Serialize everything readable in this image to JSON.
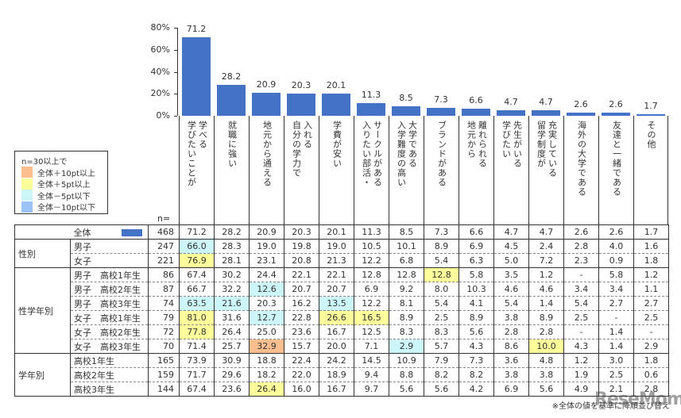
{
  "chart_data": {
    "type": "bar",
    "title": "",
    "ylabel": "",
    "xlabel": "",
    "ylim": [
      0,
      80
    ],
    "yticks": [
      "0%",
      "20%",
      "40%",
      "60%",
      "80%"
    ],
    "grid": false,
    "categories": [
      "学びたいことが学べる",
      "就職に強い",
      "地元から通える",
      "自分の学力で入れる",
      "学費が安い",
      "入りたい部活・サークルがある",
      "入学難度の高い大学である",
      "ブランドがある",
      "地元から離れられる",
      "学びたい先生がいる",
      "留学制度が充実している",
      "海外の大学である",
      "友達と一緒である",
      "その他"
    ],
    "values": [
      71.2,
      28.2,
      20.9,
      20.3,
      20.1,
      11.3,
      8.5,
      7.3,
      6.6,
      4.7,
      4.7,
      2.6,
      2.6,
      1.7
    ],
    "bar_color": "#4472c4",
    "legend": {
      "title": "n=30以上で",
      "items": [
        {
          "label": "全体＋10pt以上",
          "color": "#fbbf8f"
        },
        {
          "label": "全体＋5pt以上",
          "color": "#fefe9a"
        },
        {
          "label": "全体－5pt以下",
          "color": "#ccf6fa"
        },
        {
          "label": "全体－10pt以下",
          "color": "#9cc3f5"
        }
      ]
    },
    "table": {
      "n_label": "n=",
      "rows": [
        {
          "group": "",
          "label": "全体",
          "n": "468",
          "values": [
            "71.2",
            "28.2",
            "20.9",
            "20.3",
            "20.1",
            "11.3",
            "8.5",
            "7.3",
            "6.6",
            "4.7",
            "4.7",
            "2.6",
            "2.6",
            "1.7"
          ],
          "hl": [
            "",
            "",
            "",
            "",
            "",
            "",
            "",
            "",
            "",
            "",
            "",
            "",
            "",
            ""
          ]
        },
        {
          "group": "性別",
          "label": "男子",
          "n": "247",
          "values": [
            "66.0",
            "28.3",
            "19.0",
            "19.8",
            "19.0",
            "10.5",
            "10.1",
            "8.9",
            "6.9",
            "4.5",
            "2.4",
            "2.8",
            "4.0",
            "1.6"
          ],
          "hl": [
            "c",
            "",
            "",
            "",
            "",
            "",
            "",
            "",
            "",
            "",
            "",
            "",
            "",
            ""
          ]
        },
        {
          "group": "",
          "label": "女子",
          "n": "221",
          "values": [
            "76.9",
            "28.1",
            "23.1",
            "20.8",
            "21.3",
            "12.2",
            "6.8",
            "5.4",
            "6.3",
            "5.0",
            "7.2",
            "2.3",
            "0.9",
            "1.8"
          ],
          "hl": [
            "y",
            "",
            "",
            "",
            "",
            "",
            "",
            "",
            "",
            "",
            "",
            "",
            "",
            ""
          ]
        },
        {
          "group": "性学年別",
          "label": "男子　高校1年生",
          "n": "86",
          "values": [
            "67.4",
            "30.2",
            "24.4",
            "22.1",
            "22.1",
            "12.8",
            "12.8",
            "12.8",
            "5.8",
            "3.5",
            "1.2",
            "-",
            "5.8",
            "1.2"
          ],
          "hl": [
            "",
            "",
            "",
            "",
            "",
            "",
            "",
            "y",
            "",
            "",
            "",
            "",
            "",
            ""
          ]
        },
        {
          "group": "",
          "label": "男子　高校2年生",
          "n": "87",
          "values": [
            "66.7",
            "32.2",
            "12.6",
            "20.7",
            "20.7",
            "6.9",
            "9.2",
            "8.0",
            "10.3",
            "4.6",
            "4.6",
            "3.4",
            "3.4",
            "1.1"
          ],
          "hl": [
            "",
            "",
            "c",
            "",
            "",
            "",
            "",
            "",
            "",
            "",
            "",
            "",
            "",
            ""
          ]
        },
        {
          "group": "",
          "label": "男子　高校3年生",
          "n": "74",
          "values": [
            "63.5",
            "21.6",
            "20.3",
            "16.2",
            "13.5",
            "12.2",
            "8.1",
            "5.4",
            "4.1",
            "5.4",
            "1.4",
            "5.4",
            "2.7",
            "2.7"
          ],
          "hl": [
            "c",
            "c",
            "",
            "",
            "c",
            "",
            "",
            "",
            "",
            "",
            "",
            "",
            "",
            ""
          ]
        },
        {
          "group": "",
          "label": "女子　高校1年生",
          "n": "79",
          "values": [
            "81.0",
            "31.6",
            "12.7",
            "22.8",
            "26.6",
            "16.5",
            "8.9",
            "2.5",
            "8.9",
            "3.8",
            "8.9",
            "2.5",
            "-",
            "2.5"
          ],
          "hl": [
            "y",
            "",
            "c",
            "",
            "y",
            "y",
            "",
            "",
            "",
            "",
            "",
            "",
            "",
            ""
          ]
        },
        {
          "group": "",
          "label": "女子　高校2年生",
          "n": "72",
          "values": [
            "77.8",
            "26.4",
            "25.0",
            "23.6",
            "16.7",
            "12.5",
            "8.3",
            "8.3",
            "5.6",
            "2.8",
            "2.8",
            "-",
            "1.4",
            "-"
          ],
          "hl": [
            "y",
            "",
            "",
            "",
            "",
            "",
            "",
            "",
            "",
            "",
            "",
            "",
            "",
            ""
          ]
        },
        {
          "group": "",
          "label": "女子　高校3年生",
          "n": "70",
          "values": [
            "71.4",
            "25.7",
            "32.9",
            "15.7",
            "20.0",
            "7.1",
            "2.9",
            "5.7",
            "4.3",
            "8.6",
            "10.0",
            "4.3",
            "1.4",
            "2.9"
          ],
          "hl": [
            "",
            "",
            "o",
            "",
            "",
            "",
            "c",
            "",
            "",
            "",
            "y",
            "",
            "",
            ""
          ]
        },
        {
          "group": "学年別",
          "label": "高校1年生",
          "n": "165",
          "values": [
            "73.9",
            "30.9",
            "18.8",
            "22.4",
            "24.2",
            "14.5",
            "10.9",
            "7.9",
            "7.3",
            "3.6",
            "4.8",
            "1.2",
            "3.0",
            "1.8"
          ],
          "hl": [
            "",
            "",
            "",
            "",
            "",
            "",
            "",
            "",
            "",
            "",
            "",
            "",
            "",
            ""
          ]
        },
        {
          "group": "",
          "label": "高校2年生",
          "n": "159",
          "values": [
            "71.7",
            "29.6",
            "18.2",
            "22.0",
            "18.9",
            "9.4",
            "8.8",
            "8.2",
            "8.2",
            "3.8",
            "3.8",
            "1.9",
            "2.5",
            "0.6"
          ],
          "hl": [
            "",
            "",
            "",
            "",
            "",
            "",
            "",
            "",
            "",
            "",
            "",
            "",
            "",
            ""
          ]
        },
        {
          "group": "",
          "label": "高校3年生",
          "n": "144",
          "values": [
            "67.4",
            "23.6",
            "26.4",
            "16.0",
            "16.7",
            "9.7",
            "5.6",
            "5.6",
            "4.2",
            "6.9",
            "5.6",
            "4.9",
            "2.1",
            "2.8"
          ],
          "hl": [
            "",
            "",
            "y",
            "",
            "",
            "",
            "",
            "",
            "",
            "",
            "",
            "",
            "",
            ""
          ]
        }
      ]
    },
    "footnote": "※全体の値を基準に降順並び替え"
  },
  "vertical_labels": [
    "学べる\n学びたいことが",
    "就職に強い",
    "地元から通える",
    "入れる\n自分の学力で",
    "学費が安い",
    "サークルがある\n入りたい部活・",
    "大学である\n入学難度の高い",
    "ブランドがある",
    "離れられる\n地元から",
    "先生がいる\n学びたい",
    "充実している\n留学制度が",
    "海外の大学である",
    "友達と一緒である",
    "その他"
  ],
  "watermark": "ReseMom"
}
